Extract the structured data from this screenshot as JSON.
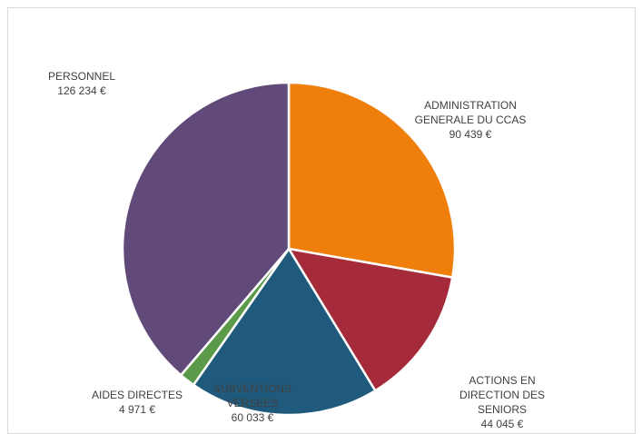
{
  "chart_data": {
    "type": "pie",
    "title": "",
    "slices": [
      {
        "label": [
          "ADMINISTRATION",
          "GENERALE DU CCAS"
        ],
        "value": 90439,
        "value_label": "90 439 €",
        "color": "#ef7f0a"
      },
      {
        "label": [
          "ACTIONS EN",
          "DIRECTION DES",
          "SENIORS"
        ],
        "value": 44045,
        "value_label": "44 045 €",
        "color": "#a52a3a"
      },
      {
        "label": [
          "SUBVENTIONS",
          "VERSEES"
        ],
        "value": 60033,
        "value_label": "60 033 €",
        "color": "#1f5a7c"
      },
      {
        "label": [
          "AIDES DIRECTES"
        ],
        "value": 4971,
        "value_label": "4 971 €",
        "color": "#5a9a48"
      },
      {
        "label": [
          "PERSONNEL"
        ],
        "value": 126234,
        "value_label": "126 234 €",
        "color": "#614a7a"
      }
    ]
  }
}
